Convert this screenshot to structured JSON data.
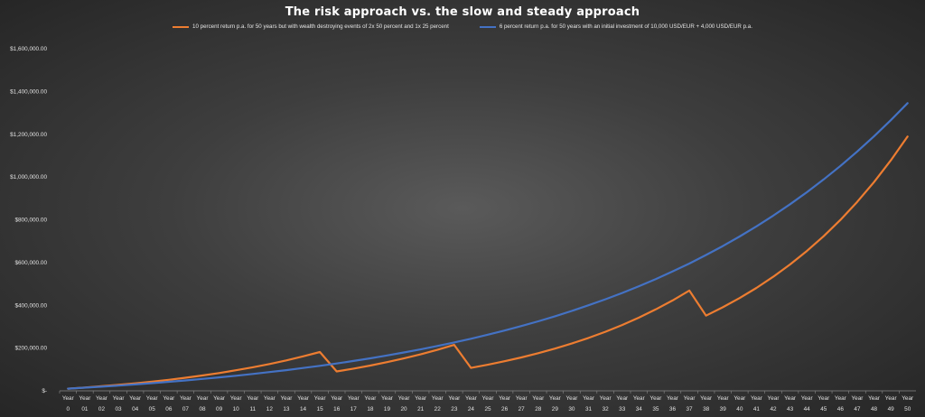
{
  "chart_data": {
    "type": "line",
    "title": "The risk approach vs. the slow and steady approach",
    "xlabel": "",
    "ylabel": "",
    "ylim": [
      0,
      1600000
    ],
    "yticks": [
      0,
      200000,
      400000,
      600000,
      800000,
      1000000,
      1200000,
      1400000,
      1600000
    ],
    "ytick_labels": [
      "$-",
      "$200,000.00",
      "$400,000.00",
      "$600,000.00",
      "$800,000.00",
      "$1,000,000.00",
      "$1,200,000.00",
      "$1,400,000.00",
      "$1,600,000.00"
    ],
    "x_prefix": "Year",
    "categories": [
      "0",
      "01",
      "02",
      "03",
      "04",
      "05",
      "06",
      "07",
      "08",
      "09",
      "10",
      "11",
      "12",
      "13",
      "14",
      "15",
      "16",
      "17",
      "18",
      "19",
      "20",
      "21",
      "22",
      "23",
      "24",
      "25",
      "26",
      "27",
      "28",
      "29",
      "30",
      "31",
      "32",
      "33",
      "34",
      "35",
      "36",
      "37",
      "38",
      "39",
      "40",
      "41",
      "42",
      "43",
      "44",
      "45",
      "46",
      "47",
      "48",
      "49",
      "50"
    ],
    "grid": false,
    "legend_position": "top",
    "series": [
      {
        "name": "10 percent return p.a. for 50 years but with wealth destroying events of 2x 50 percent and 1x 25 percent",
        "color": "#ed7d31",
        "values": [
          10000,
          15400,
          21340,
          27874,
          35061,
          42968,
          51664,
          61231,
          71754,
          83329,
          96062,
          110068,
          125475,
          142422,
          161065,
          181571,
          90786,
          103864,
          118251,
          134076,
          151483,
          170632,
          191695,
          214864,
          107432,
          122175,
          138393,
          156232,
          175855,
          197441,
          221185,
          247304,
          276034,
          307638,
          342401,
          380642,
          422706,
          468976,
          351732,
          390905,
          433996,
          481395,
          533535,
          590888,
          653977,
          723375,
          799712,
          883684,
          976052,
          1077657,
          1189423
        ],
        "values_note": ""
      },
      {
        "name": "6 percent return p.a. for 50 years with an initial investment of 10,000 USD/EUR + 4,000 USD/EUR p.a.",
        "color": "#4472c4",
        "values": [
          10000,
          14600,
          19476,
          24645,
          30123,
          35931,
          42087,
          48612,
          55529,
          62861,
          70633,
          78871,
          87603,
          96860,
          106671,
          117072,
          128096,
          139782,
          152169,
          165299,
          179217,
          193970,
          209608,
          226184,
          243755,
          262380,
          282123,
          303050,
          325233,
          348747,
          373672,
          400092,
          428098,
          457784,
          489251,
          522606,
          557962,
          595440,
          635166,
          677276,
          721913,
          769228,
          819381,
          872544,
          928897,
          988631,
          1051949,
          1119066,
          1190210,
          1265622,
          1345559
        ]
      }
    ]
  }
}
